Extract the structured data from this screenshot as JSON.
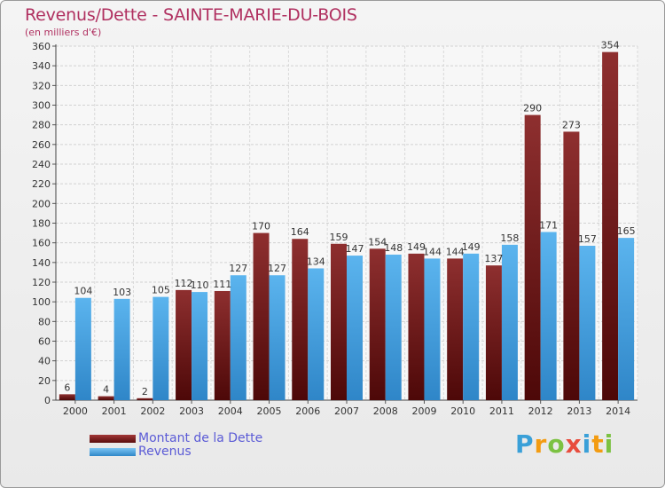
{
  "header": {
    "title": "Revenus/Dette - SAINTE-MARIE-DU-BOIS",
    "subtitle": "(en milliers d'€)"
  },
  "chart_data": {
    "type": "bar",
    "categories": [
      "2000",
      "2001",
      "2002",
      "2003",
      "2004",
      "2005",
      "2006",
      "2007",
      "2008",
      "2009",
      "2010",
      "2011",
      "2012",
      "2013",
      "2014"
    ],
    "series": [
      {
        "name": "Montant de la Dette",
        "color": "#7a1f1f",
        "values": [
          6,
          4,
          2,
          112,
          111,
          170,
          164,
          159,
          154,
          149,
          144,
          137,
          290,
          273,
          354
        ]
      },
      {
        "name": "Revenus",
        "color": "#4aa3e6",
        "values": [
          104,
          103,
          105,
          110,
          127,
          127,
          134,
          147,
          148,
          144,
          149,
          158,
          171,
          157,
          165
        ]
      }
    ],
    "ylim": [
      0,
      360
    ],
    "ytick_step": 20,
    "grid": true,
    "legend_position": "bottom-left"
  },
  "legend": {
    "items": [
      {
        "label": "Montant de la Dette",
        "color": "#7a1f1f"
      },
      {
        "label": "Revenus",
        "color": "#4aa3e6"
      }
    ]
  },
  "brand": {
    "letters": [
      "P",
      "r",
      "o",
      "x",
      "i",
      "t",
      "i"
    ],
    "colors": [
      "#3aa0d8",
      "#f39c12",
      "#7cc242",
      "#e84c3d",
      "#3aa0d8",
      "#f39c12",
      "#7cc242"
    ]
  }
}
